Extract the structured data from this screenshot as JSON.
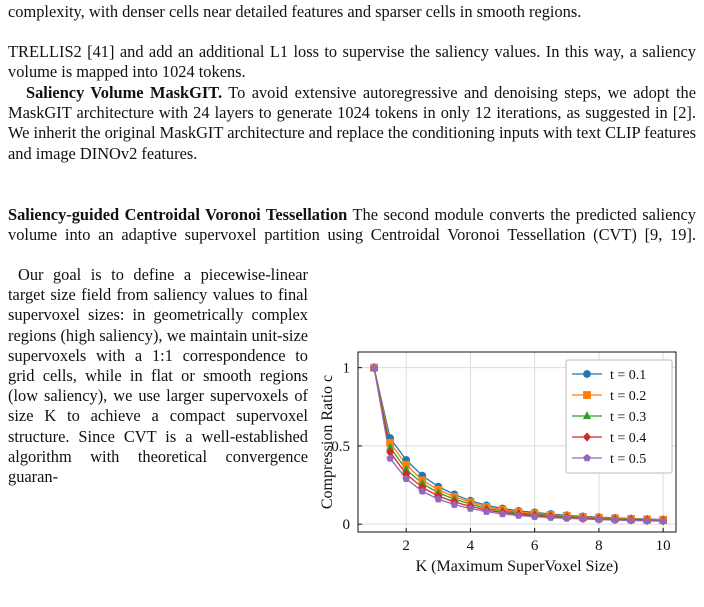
{
  "caption_fragment": "complexity, with denser cells near detailed features and sparser cells in smooth regions.",
  "paragraphs": [
    {
      "text": "TRELLIS2 [41] and add an additional L1 loss to supervise the saliency values. In this way, a saliency volume is mapped into 1024 tokens."
    },
    {
      "heading": "Saliency Volume MaskGIT.",
      "text": "To avoid extensive autoregressive and denoising steps, we adopt the MaskGIT architecture with 24 layers to generate 1024 tokens in only 12 iterations, as suggested in [2]. We inherit the original MaskGIT architecture and replace the conditioning inputs with text CLIP features and image DINOv2 features."
    },
    {
      "heading": "Saliency-guided Centroidal Voronoi Tessellation",
      "text": "The second module converts the predicted saliency volume into an adaptive supervoxel partition using Centroidal Voronoi Tessellation (CVT) [9, 19]."
    },
    {
      "text": "Our goal is to define a piecewise-linear target size field from saliency values to final supervoxel sizes: in geometrically complex regions (high saliency), we maintain unit-size supervoxels with a 1:1 correspondence to grid cells, while in flat or smooth regions (low saliency), we use larger supervoxels of size K to achieve a compact supervoxel structure. Since CVT is a well-established algorithm with theoretical convergence guaran-"
    }
  ],
  "chart_data": {
    "type": "line",
    "xlabel": "K (Maximum SuperVoxel Size)",
    "ylabel": "Compression Ratio c",
    "x": [
      1,
      1.5,
      2,
      2.5,
      3,
      3.5,
      4,
      4.5,
      5,
      5.5,
      6,
      6.5,
      7,
      7.5,
      8,
      8.5,
      9,
      9.5,
      10
    ],
    "series": [
      {
        "name": "t = 0.1",
        "color": "#1f77b4",
        "marker": "circle",
        "values": [
          1,
          0.55,
          0.41,
          0.31,
          0.24,
          0.19,
          0.15,
          0.12,
          0.1,
          0.085,
          0.075,
          0.065,
          0.057,
          0.05,
          0.045,
          0.04,
          0.036,
          0.033,
          0.03
        ]
      },
      {
        "name": "t = 0.2",
        "color": "#ff7f0e",
        "marker": "square",
        "values": [
          1,
          0.52,
          0.38,
          0.28,
          0.22,
          0.175,
          0.14,
          0.11,
          0.092,
          0.078,
          0.068,
          0.059,
          0.052,
          0.046,
          0.041,
          0.037,
          0.033,
          0.03,
          0.028
        ]
      },
      {
        "name": "t = 0.3",
        "color": "#2ca02c",
        "marker": "triangle",
        "values": [
          1,
          0.49,
          0.35,
          0.26,
          0.2,
          0.16,
          0.128,
          0.1,
          0.084,
          0.071,
          0.062,
          0.054,
          0.047,
          0.042,
          0.037,
          0.034,
          0.03,
          0.027,
          0.025
        ]
      },
      {
        "name": "t = 0.4",
        "color": "#d62728",
        "marker": "diamond",
        "values": [
          1,
          0.46,
          0.32,
          0.235,
          0.18,
          0.142,
          0.114,
          0.09,
          0.075,
          0.063,
          0.055,
          0.048,
          0.042,
          0.037,
          0.033,
          0.03,
          0.027,
          0.024,
          0.022
        ]
      },
      {
        "name": "t = 0.5",
        "color": "#9467bd",
        "marker": "pentagon",
        "values": [
          1,
          0.42,
          0.29,
          0.21,
          0.16,
          0.125,
          0.1,
          0.08,
          0.065,
          0.055,
          0.048,
          0.042,
          0.037,
          0.033,
          0.029,
          0.026,
          0.023,
          0.021,
          0.02
        ]
      }
    ],
    "xlim": [
      0.5,
      10.4
    ],
    "ylim": [
      -0.05,
      1.1
    ],
    "xticks": [
      2,
      4,
      6,
      8,
      10
    ],
    "yticks": [
      0,
      0.5,
      1
    ],
    "grid": true,
    "legend": "upper right"
  }
}
